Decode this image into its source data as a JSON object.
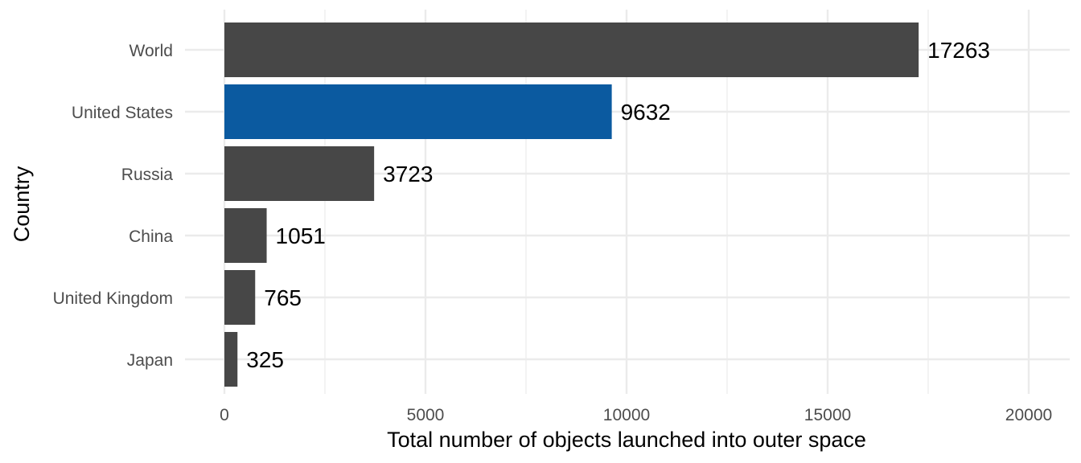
{
  "chart_data": {
    "type": "bar",
    "orientation": "horizontal",
    "categories": [
      "World",
      "United States",
      "Russia",
      "China",
      "United Kingdom",
      "Japan"
    ],
    "values": [
      17263,
      9632,
      3723,
      1051,
      765,
      325
    ],
    "data_labels": [
      "17263",
      "9632",
      "3723",
      "1051",
      "765",
      "325"
    ],
    "highlight": "United States",
    "xlabel": "Total number of objects launched into outer space",
    "ylabel": "Country",
    "xlim": [
      0,
      20000
    ],
    "x_ticks": [
      0,
      5000,
      10000,
      15000,
      20000
    ],
    "x_tick_labels": [
      "0",
      "5000",
      "10000",
      "15000",
      "20000"
    ],
    "grid": true,
    "colors": {
      "bar": "#474747",
      "highlight": "#0b5aa0"
    }
  }
}
